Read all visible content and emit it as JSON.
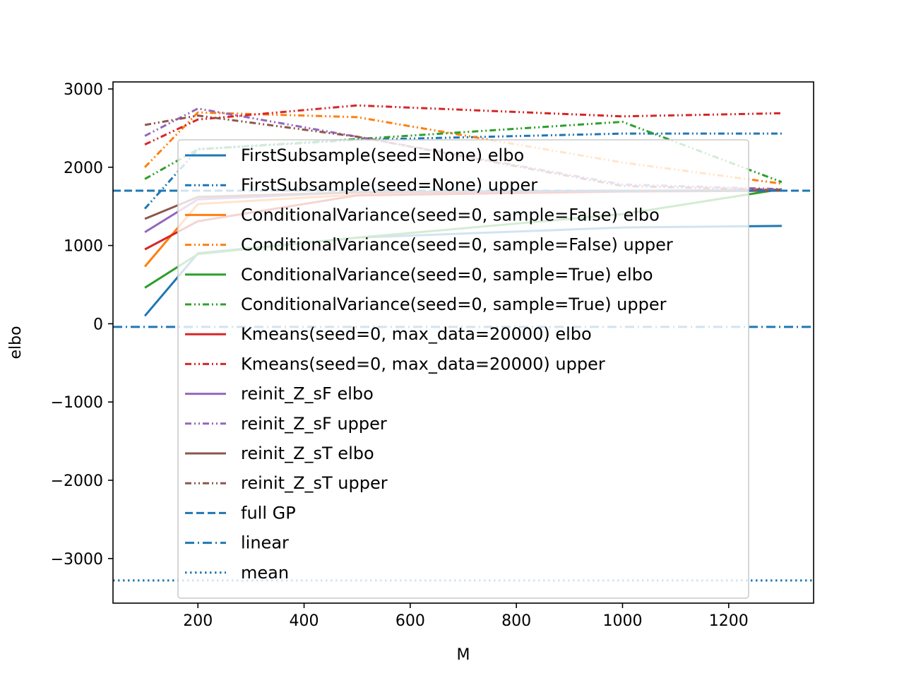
{
  "chart_data": {
    "type": "line",
    "xlabel": "M",
    "ylabel": "elbo",
    "xlim": [
      40,
      1360
    ],
    "ylim": [
      -3570,
      3090
    ],
    "x_ticks": [
      200,
      400,
      600,
      800,
      1000,
      1200
    ],
    "y_ticks": [
      -3000,
      -2000,
      -1000,
      0,
      1000,
      2000,
      3000
    ],
    "x_tick_labels": [
      "200",
      "400",
      "600",
      "800",
      "1000",
      "1200"
    ],
    "y_tick_labels": [
      "−3000",
      "−2000",
      "−1000",
      "0",
      "1000",
      "2000",
      "3000"
    ],
    "grid": false,
    "legend_position": "center",
    "series": [
      {
        "name": "FirstSubsample(seed=None) elbo",
        "color": "#1f77b4",
        "style": "solid",
        "x": [
          100,
          200,
          500,
          1000,
          1300
        ],
        "y": [
          100,
          900,
          1100,
          1230,
          1250
        ]
      },
      {
        "name": "FirstSubsample(seed=None) upper",
        "color": "#1f77b4",
        "style": "dashdotdot",
        "x": [
          100,
          200,
          500,
          1000,
          1300
        ],
        "y": [
          1470,
          2230,
          2350,
          2430,
          2430
        ]
      },
      {
        "name": "ConditionalVariance(seed=0, sample=False) elbo",
        "color": "#ff7f0e",
        "style": "solid",
        "x": [
          100,
          200,
          500,
          1000,
          1300
        ],
        "y": [
          730,
          1530,
          1650,
          1700,
          1710
        ]
      },
      {
        "name": "ConditionalVariance(seed=0, sample=False) upper",
        "color": "#ff7f0e",
        "style": "dashdotdot",
        "x": [
          100,
          200,
          500,
          1000,
          1300
        ],
        "y": [
          2000,
          2700,
          2640,
          2060,
          1790
        ]
      },
      {
        "name": "ConditionalVariance(seed=0, sample=True) elbo",
        "color": "#2ca02c",
        "style": "solid",
        "x": [
          100,
          200,
          500,
          1000,
          1300
        ],
        "y": [
          460,
          890,
          1100,
          1400,
          1720
        ]
      },
      {
        "name": "ConditionalVariance(seed=0, sample=True) upper",
        "color": "#2ca02c",
        "style": "dashdotdot",
        "x": [
          100,
          200,
          500,
          1000,
          1300
        ],
        "y": [
          1850,
          2230,
          2360,
          2580,
          1810
        ]
      },
      {
        "name": "Kmeans(seed=0, max_data=20000) elbo",
        "color": "#d62728",
        "style": "solid",
        "x": [
          100,
          200,
          500,
          1000,
          1300
        ],
        "y": [
          950,
          1310,
          1640,
          1690,
          1700
        ]
      },
      {
        "name": "Kmeans(seed=0, max_data=20000) upper",
        "color": "#d62728",
        "style": "dashdotdot",
        "x": [
          100,
          200,
          500,
          1000,
          1300
        ],
        "y": [
          2290,
          2610,
          2790,
          2650,
          2690
        ]
      },
      {
        "name": "reinit_Z_sF elbo",
        "color": "#9467bd",
        "style": "solid",
        "x": [
          100,
          200,
          500,
          1000,
          1300
        ],
        "y": [
          1170,
          1590,
          1680,
          1700,
          1700
        ]
      },
      {
        "name": "reinit_Z_sF upper",
        "color": "#9467bd",
        "style": "dashdotdot",
        "x": [
          100,
          200,
          500,
          1000,
          1300
        ],
        "y": [
          2400,
          2750,
          2390,
          1780,
          1720
        ]
      },
      {
        "name": "reinit_Z_sT elbo",
        "color": "#8c564b",
        "style": "solid",
        "x": [
          100,
          200,
          500,
          1000,
          1300
        ],
        "y": [
          1340,
          1620,
          1680,
          1700,
          1700
        ]
      },
      {
        "name": "reinit_Z_sT upper",
        "color": "#8c564b",
        "style": "dashdotdot",
        "x": [
          100,
          200,
          500,
          1000,
          1300
        ],
        "y": [
          2540,
          2660,
          2390,
          1760,
          1710
        ]
      },
      {
        "name": "full GP",
        "color": "#1f77b4",
        "style": "dashed",
        "hline": 1700
      },
      {
        "name": "linear",
        "color": "#1f77b4",
        "style": "dashdot",
        "hline": -40
      },
      {
        "name": "mean",
        "color": "#1f77b4",
        "style": "dotted",
        "hline": -3280
      }
    ]
  }
}
